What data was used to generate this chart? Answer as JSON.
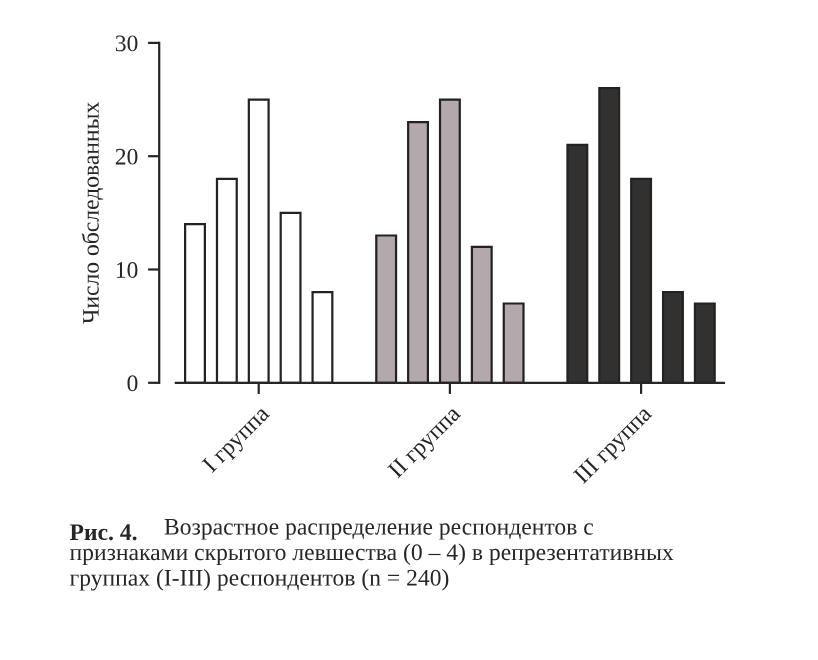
{
  "chart_data": {
    "type": "bar",
    "ylabel": "Число обследованных",
    "categories": [
      null,
      null,
      "I группа",
      null,
      null,
      null,
      null,
      null,
      "II группа",
      null,
      null,
      null,
      null,
      null,
      "III группа",
      null,
      null
    ],
    "values": [
      14,
      18,
      25,
      15,
      8,
      null,
      13,
      23,
      25,
      12,
      7,
      null,
      21,
      26,
      18,
      8,
      7
    ],
    "colors": [
      "#ffffff",
      "#ffffff",
      "#ffffff",
      "#ffffff",
      "#ffffff",
      null,
      "#b3a9ad",
      "#b3a9ad",
      "#b3a9ad",
      "#b3a9ad",
      "#b3a9ad",
      null,
      "#333030",
      "#333030",
      "#333030",
      "#333030",
      "#333030"
    ],
    "ylim": [
      0,
      30
    ],
    "yticks": [
      0,
      10,
      20,
      30
    ],
    "grid": false,
    "legend": false,
    "annotations": [
      "Рис. 4.",
      "Возрастное распределение респондентов с\nпризнаками скрытого левшества (0 – 4) в репрезентативных\nгруппах (I-III) респондентов (n = 240)"
    ]
  }
}
